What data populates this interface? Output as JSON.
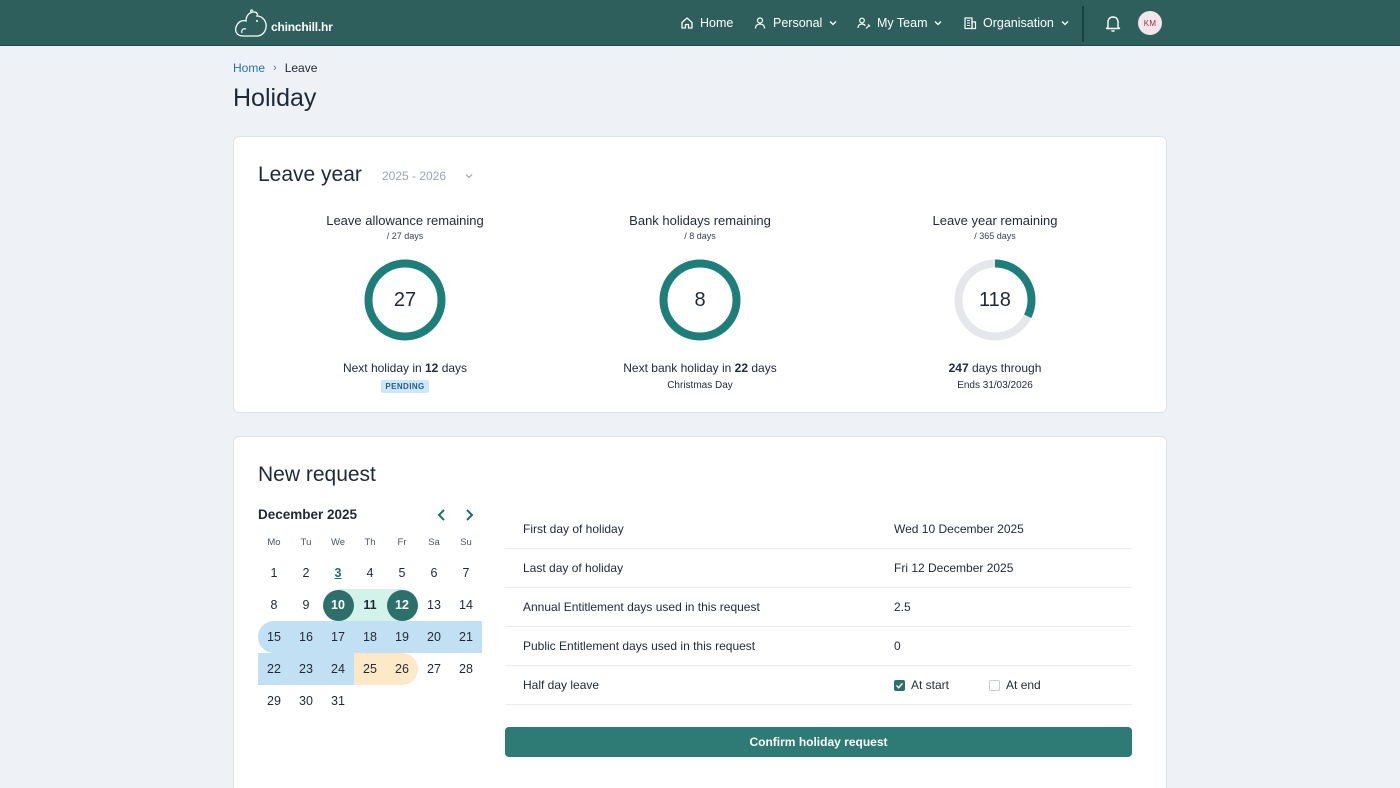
{
  "brand": {
    "name": "chinchill.hr"
  },
  "nav": {
    "home": "Home",
    "personal": "Personal",
    "my_team": "My Team",
    "organisation": "Organisation",
    "avatar_initials": "KM"
  },
  "breadcrumb": {
    "home": "Home",
    "current": "Leave"
  },
  "page_title": "Holiday",
  "leave_year": {
    "title": "Leave year",
    "selected_year": "2025 - 2026",
    "stats": [
      {
        "title": "Leave allowance remaining",
        "sub": "/ 27 days",
        "value": "27",
        "ring_fraction": 1.0,
        "foot_prefix": "Next holiday in ",
        "foot_bold": "12",
        "foot_suffix": " days",
        "badge": "PENDING"
      },
      {
        "title": "Bank holidays remaining",
        "sub": "/ 8 days",
        "value": "8",
        "ring_fraction": 1.0,
        "foot_prefix": "Next bank holiday in ",
        "foot_bold": "22",
        "foot_suffix": " days",
        "foot2": "Christmas Day"
      },
      {
        "title": "Leave year remaining",
        "sub": "/ 365 days",
        "value": "118",
        "ring_fraction": 0.323,
        "foot_prefix": "",
        "foot_bold": "247",
        "foot_suffix": " days through",
        "foot2": "Ends 31/03/2026"
      }
    ]
  },
  "new_request": {
    "title": "New request",
    "calendar": {
      "month_label": "December 2025",
      "weekdays": [
        "Mo",
        "Tu",
        "We",
        "Th",
        "Fr",
        "Sa",
        "Su"
      ],
      "weeks": [
        [
          "1",
          "2",
          "3",
          "4",
          "5",
          "6",
          "7"
        ],
        [
          "8",
          "9",
          "10",
          "11",
          "12",
          "13",
          "14"
        ],
        [
          "15",
          "16",
          "17",
          "18",
          "19",
          "20",
          "21"
        ],
        [
          "22",
          "23",
          "24",
          "25",
          "26",
          "27",
          "28"
        ],
        [
          "29",
          "30",
          "31",
          "",
          "",
          "",
          ""
        ]
      ]
    },
    "details": {
      "first_day_label": "First day of holiday",
      "first_day_value": "Wed 10 December 2025",
      "last_day_label": "Last day of holiday",
      "last_day_value": "Fri 12 December 2025",
      "annual_label": "Annual Entitlement days used in this request",
      "annual_value": "2.5",
      "public_label": "Public Entitlement days used in this request",
      "public_value": "0",
      "half_day_label": "Half day leave",
      "at_start_label": "At start",
      "at_start_checked": true,
      "at_end_label": "At end",
      "at_end_checked": false
    },
    "confirm_label": "Confirm holiday request"
  },
  "colors": {
    "nav_bg": "#2e5f5c",
    "accent": "#2e7a74",
    "ring": "#1e7f7a",
    "ring_track": "#e5e7eb",
    "selected_range": "#d3f3ea",
    "team_leave": "#c1e0f4",
    "bank_holiday": "#fde8c8"
  }
}
